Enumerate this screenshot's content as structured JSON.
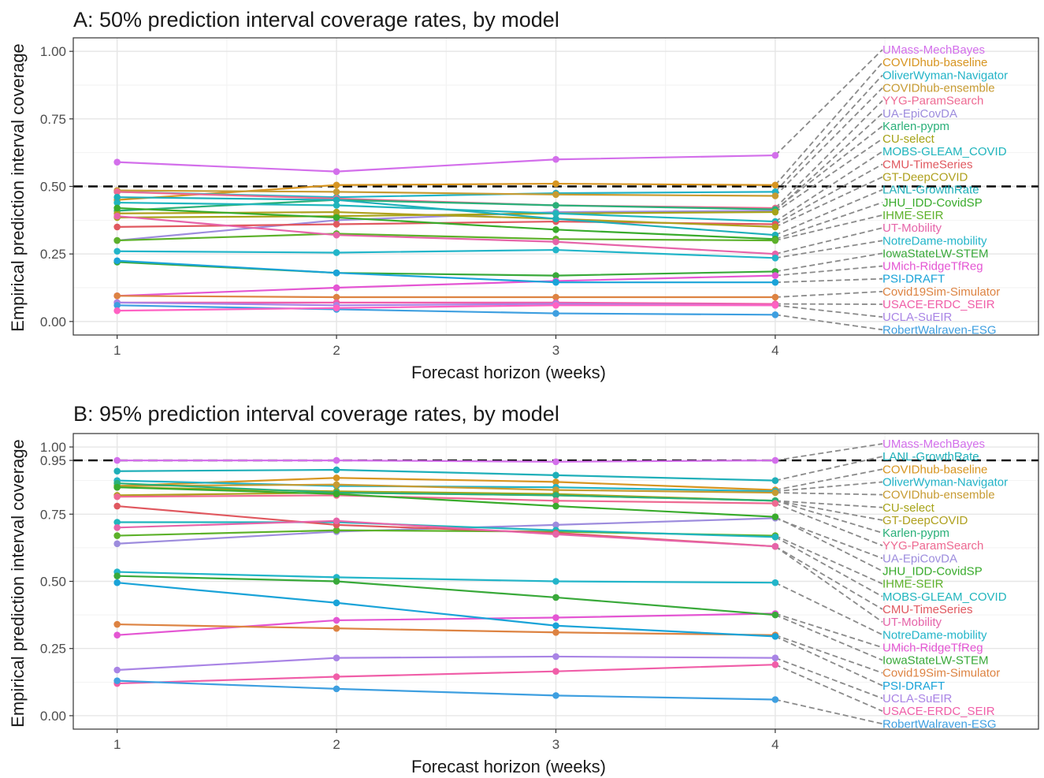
{
  "chart_data": [
    {
      "type": "line",
      "title": "A: 50% prediction interval coverage rates, by model",
      "xlabel": "Forecast horizon (weeks)",
      "ylabel": "Empirical prediction interval coverage",
      "x": [
        1,
        2,
        3,
        4
      ],
      "xticks": [
        "1",
        "2",
        "3",
        "4"
      ],
      "ylim": [
        -0.05,
        1.05
      ],
      "yticks": [
        0.0,
        0.25,
        0.5,
        0.75,
        1.0
      ],
      "ytick_labels": [
        "0.00",
        "0.25",
        "0.50",
        "0.75",
        "1.00"
      ],
      "reference_line": 0.5,
      "grid": true,
      "legend": "direct labels at right",
      "series": [
        {
          "name": "UMass-MechBayes",
          "color": "#D36FEB",
          "values": [
            0.59,
            0.555,
            0.6,
            0.615
          ]
        },
        {
          "name": "COVIDhub-baseline",
          "color": "#D79521",
          "values": [
            0.45,
            0.505,
            0.51,
            0.505
          ]
        },
        {
          "name": "OliverWyman-Navigator",
          "color": "#22B3C7",
          "values": [
            0.48,
            0.46,
            0.475,
            0.48
          ]
        },
        {
          "name": "COVIDhub-ensemble",
          "color": "#C79B32",
          "values": [
            0.485,
            0.48,
            0.47,
            0.465
          ]
        },
        {
          "name": "YYG-ParamSearch",
          "color": "#EE6A92",
          "values": [
            0.48,
            0.455,
            0.43,
            0.42
          ]
        },
        {
          "name": "UA-EpiCovDA",
          "color": "#9D8CDD",
          "values": [
            0.3,
            0.375,
            0.405,
            0.41
          ]
        },
        {
          "name": "Karlen-pypm",
          "color": "#2AB079",
          "values": [
            0.41,
            0.45,
            0.43,
            0.415
          ]
        },
        {
          "name": "CU-select",
          "color": "#A6A318",
          "values": [
            0.385,
            0.39,
            0.4,
            0.405
          ]
        },
        {
          "name": "MOBS-GLEAM_COVID",
          "color": "#20B5BD",
          "values": [
            0.44,
            0.43,
            0.4,
            0.37
          ]
        },
        {
          "name": "CMU-TimeSeries",
          "color": "#E0585F",
          "values": [
            0.35,
            0.36,
            0.37,
            0.36
          ]
        },
        {
          "name": "GT-DeepCOVID",
          "color": "#AFA01E",
          "values": [
            0.4,
            0.405,
            0.38,
            0.35
          ]
        },
        {
          "name": "LANL-GrowthRate",
          "color": "#1FAFB9",
          "values": [
            0.46,
            0.45,
            0.38,
            0.32
          ]
        },
        {
          "name": "JHU_IDD-CovidSP",
          "color": "#39AB2C",
          "values": [
            0.42,
            0.385,
            0.34,
            0.305
          ]
        },
        {
          "name": "IHME-SEIR",
          "color": "#5DB12A",
          "values": [
            0.3,
            0.325,
            0.305,
            0.3
          ]
        },
        {
          "name": "UT-Mobility",
          "color": "#E664A9",
          "values": [
            0.39,
            0.32,
            0.295,
            0.25
          ]
        },
        {
          "name": "NotreDame-mobility",
          "color": "#23B5C9",
          "values": [
            0.26,
            0.255,
            0.265,
            0.235
          ]
        },
        {
          "name": "IowaStateLW-STEM",
          "color": "#39A93A",
          "values": [
            0.22,
            0.18,
            0.17,
            0.185
          ]
        },
        {
          "name": "UMich-RidgeTfReg",
          "color": "#E456D3",
          "values": [
            0.095,
            0.125,
            0.15,
            0.17
          ]
        },
        {
          "name": "PSI-DRAFT",
          "color": "#1AA3D8",
          "values": [
            0.225,
            0.18,
            0.145,
            0.145
          ]
        },
        {
          "name": "Covid19Sim-Simulator",
          "color": "#DD8342",
          "values": [
            0.095,
            0.09,
            0.09,
            0.09
          ]
        },
        {
          "name": "USACE-ERDC_SEIR",
          "color": "#F05EA8",
          "values": [
            0.07,
            0.07,
            0.07,
            0.065
          ]
        },
        {
          "name": "UCLA-SuEIR",
          "color": "#A984E5",
          "values": [
            0.07,
            0.06,
            0.065,
            0.06
          ]
        },
        {
          "name": "RobertWalraven-ESG",
          "color": "#3E9FE0",
          "values": [
            0.06,
            0.045,
            0.03,
            0.025
          ]
        },
        {
          "name": "",
          "color": "#FF61C3",
          "values": [
            0.04,
            0.05,
            0.06,
            0.06
          ]
        }
      ]
    },
    {
      "type": "line",
      "title": "B: 95% prediction interval coverage rates, by model",
      "xlabel": "Forecast horizon (weeks)",
      "ylabel": "Empirical prediction interval coverage",
      "x": [
        1,
        2,
        3,
        4
      ],
      "xticks": [
        "1",
        "2",
        "3",
        "4"
      ],
      "ylim": [
        -0.05,
        1.05
      ],
      "yticks": [
        0.0,
        0.25,
        0.5,
        0.75,
        0.95,
        1.0
      ],
      "ytick_labels": [
        "0.00",
        "0.25",
        "0.50",
        "0.75",
        "0.95",
        "1.00"
      ],
      "reference_line": 0.95,
      "grid": true,
      "legend": "direct labels at right",
      "series": [
        {
          "name": "UMass-MechBayes",
          "color": "#D36FEB",
          "values": [
            0.95,
            0.95,
            0.945,
            0.95
          ]
        },
        {
          "name": "LANL-GrowthRate",
          "color": "#1FAFB9",
          "values": [
            0.91,
            0.915,
            0.895,
            0.875
          ]
        },
        {
          "name": "COVIDhub-baseline",
          "color": "#D79521",
          "values": [
            0.855,
            0.885,
            0.87,
            0.84
          ]
        },
        {
          "name": "OliverWyman-Navigator",
          "color": "#22B3C7",
          "values": [
            0.875,
            0.855,
            0.85,
            0.835
          ]
        },
        {
          "name": "COVIDhub-ensemble",
          "color": "#C79B32",
          "values": [
            0.855,
            0.86,
            0.84,
            0.83
          ]
        },
        {
          "name": "CU-select",
          "color": "#A6A318",
          "values": [
            0.85,
            0.835,
            0.825,
            0.8
          ]
        },
        {
          "name": "GT-DeepCOVID",
          "color": "#AFA01E",
          "values": [
            0.82,
            0.83,
            0.82,
            0.8
          ]
        },
        {
          "name": "Karlen-pypm",
          "color": "#2AB079",
          "values": [
            0.865,
            0.83,
            0.82,
            0.8
          ]
        },
        {
          "name": "YYG-ParamSearch",
          "color": "#EE6A92",
          "values": [
            0.815,
            0.82,
            0.8,
            0.79
          ]
        },
        {
          "name": "UA-EpiCovDA",
          "color": "#9D8CDD",
          "values": [
            0.64,
            0.685,
            0.71,
            0.735
          ]
        },
        {
          "name": "JHU_IDD-CovidSP",
          "color": "#39AB2C",
          "values": [
            0.85,
            0.825,
            0.78,
            0.74
          ]
        },
        {
          "name": "IHME-SEIR",
          "color": "#5DB12A",
          "values": [
            0.67,
            0.69,
            0.685,
            0.67
          ]
        },
        {
          "name": "MOBS-GLEAM_COVID",
          "color": "#20B5BD",
          "values": [
            0.72,
            0.72,
            0.69,
            0.665
          ]
        },
        {
          "name": "CMU-TimeSeries",
          "color": "#E0585F",
          "values": [
            0.78,
            0.71,
            0.68,
            0.63
          ]
        },
        {
          "name": "UT-Mobility",
          "color": "#E664A9",
          "values": [
            0.7,
            0.725,
            0.675,
            0.63
          ]
        },
        {
          "name": "NotreDame-mobility",
          "color": "#23B5C9",
          "values": [
            0.535,
            0.515,
            0.5,
            0.495
          ]
        },
        {
          "name": "UMich-RidgeTfReg",
          "color": "#E456D3",
          "values": [
            0.3,
            0.355,
            0.365,
            0.38
          ]
        },
        {
          "name": "IowaStateLW-STEM",
          "color": "#39A93A",
          "values": [
            0.52,
            0.5,
            0.44,
            0.375
          ]
        },
        {
          "name": "Covid19Sim-Simulator",
          "color": "#DD8342",
          "values": [
            0.34,
            0.325,
            0.31,
            0.3
          ]
        },
        {
          "name": "PSI-DRAFT",
          "color": "#1AA3D8",
          "values": [
            0.495,
            0.42,
            0.335,
            0.295
          ]
        },
        {
          "name": "UCLA-SuEIR",
          "color": "#A984E5",
          "values": [
            0.17,
            0.215,
            0.22,
            0.215
          ]
        },
        {
          "name": "USACE-ERDC_SEIR",
          "color": "#F05EA8",
          "values": [
            0.12,
            0.145,
            0.165,
            0.19
          ]
        },
        {
          "name": "RobertWalraven-ESG",
          "color": "#3E9FE0",
          "values": [
            0.13,
            0.1,
            0.075,
            0.06
          ]
        }
      ]
    }
  ]
}
